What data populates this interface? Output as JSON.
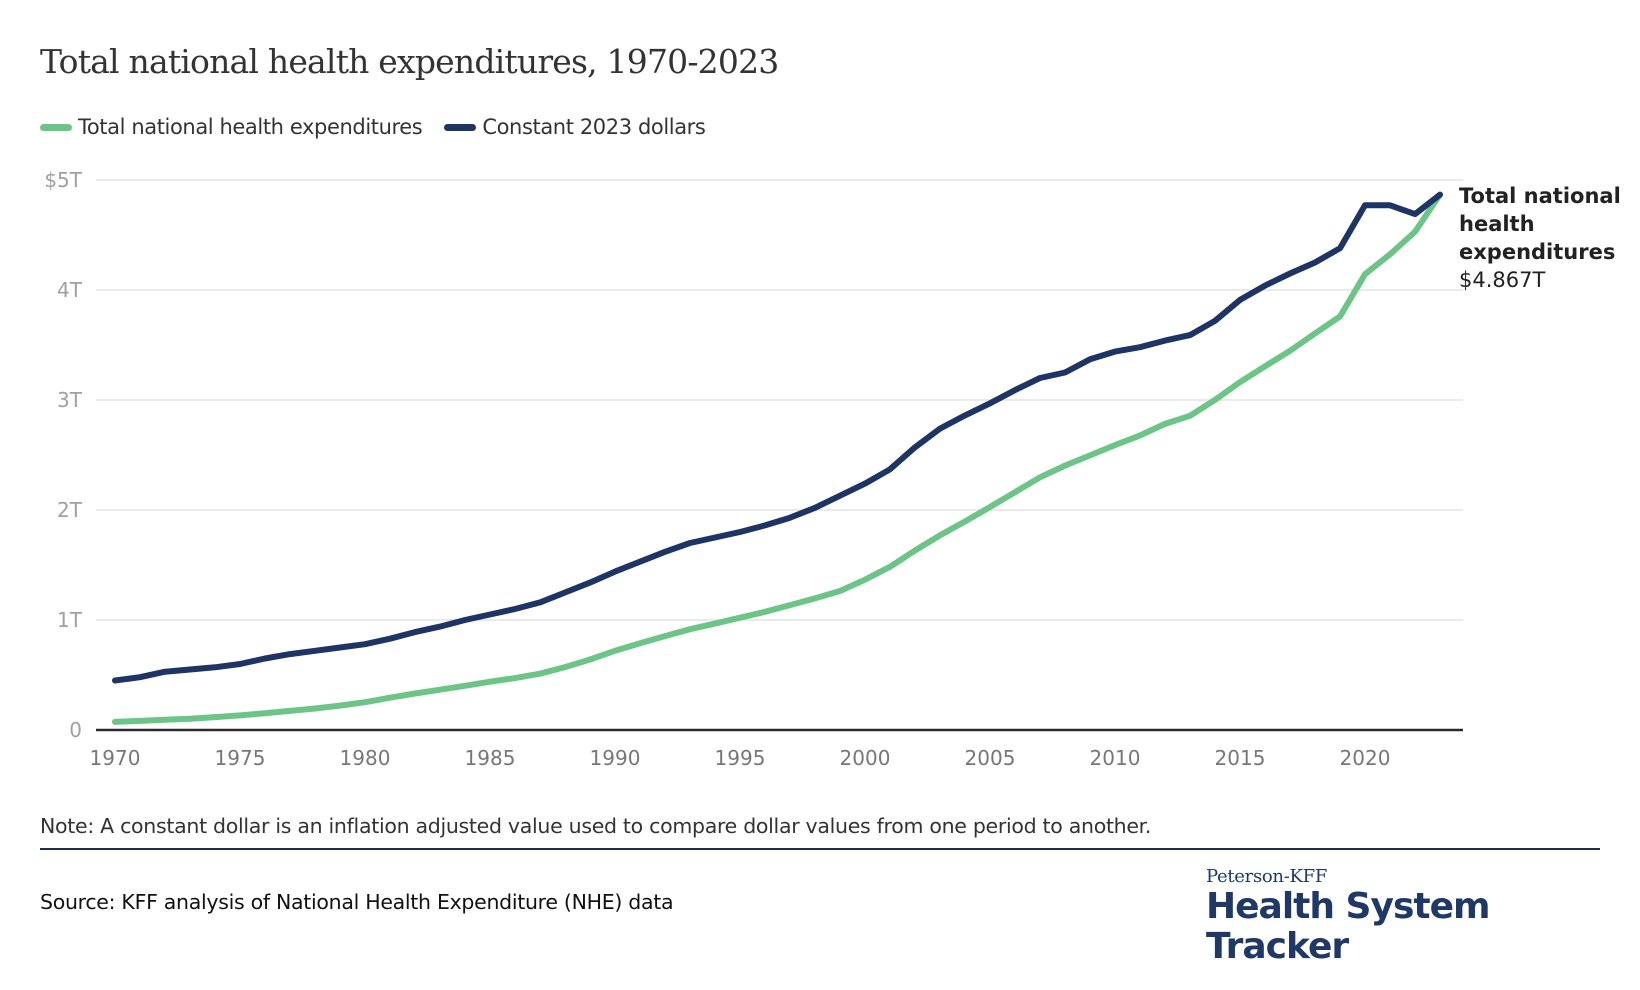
{
  "header": {
    "title": "Total national health expenditures, 1970-2023"
  },
  "legend": [
    {
      "label": "Total national health expenditures",
      "color": "#6cc487"
    },
    {
      "label": "Constant 2023 dollars",
      "color": "#1e3464"
    }
  ],
  "end_label": {
    "label": "Total national health expenditures",
    "value": "$4.867T"
  },
  "footer": {
    "note": "Note: A constant dollar is an inflation adjusted value used to compare dollar values from one period to another.",
    "source": "Source: KFF analysis of National Health Expenditure (NHE) data",
    "logo_small": "Peterson-KFF",
    "logo_big": "Health System Tracker"
  },
  "chart_data": {
    "type": "line",
    "title": "Total national health expenditures, 1970-2023",
    "xlabel": "",
    "ylabel": "",
    "x": [
      1970,
      1971,
      1972,
      1973,
      1974,
      1975,
      1976,
      1977,
      1978,
      1979,
      1980,
      1981,
      1982,
      1983,
      1984,
      1985,
      1986,
      1987,
      1988,
      1989,
      1990,
      1991,
      1992,
      1993,
      1994,
      1995,
      1996,
      1997,
      1998,
      1999,
      2000,
      2001,
      2002,
      2003,
      2004,
      2005,
      2006,
      2007,
      2008,
      2009,
      2010,
      2011,
      2012,
      2013,
      2014,
      2015,
      2016,
      2017,
      2018,
      2019,
      2020,
      2021,
      2022,
      2023
    ],
    "xlim": [
      1970,
      2023
    ],
    "ylim": [
      0,
      5
    ],
    "y_unit": "trillions of dollars",
    "x_ticks": [
      1970,
      1975,
      1980,
      1985,
      1990,
      1995,
      2000,
      2005,
      2010,
      2015,
      2020
    ],
    "x_tick_labels": [
      "1970",
      "1975",
      "1980",
      "1985",
      "1990",
      "1995",
      "2000",
      "2005",
      "2010",
      "2015",
      "2020"
    ],
    "y_ticks": [
      0,
      1,
      2,
      3,
      4,
      5
    ],
    "y_tick_labels": [
      "0",
      "1T",
      "2T",
      "3T",
      "4T",
      "$5T"
    ],
    "grid": true,
    "legend_position": "top-left",
    "series": [
      {
        "name": "Total national health expenditures",
        "color": "#6cc487",
        "values": [
          0.074,
          0.083,
          0.093,
          0.103,
          0.117,
          0.133,
          0.153,
          0.174,
          0.195,
          0.222,
          0.253,
          0.294,
          0.332,
          0.366,
          0.402,
          0.439,
          0.472,
          0.512,
          0.572,
          0.641,
          0.72,
          0.788,
          0.854,
          0.916,
          0.967,
          1.021,
          1.075,
          1.135,
          1.196,
          1.264,
          1.366,
          1.484,
          1.632,
          1.77,
          1.895,
          2.027,
          2.162,
          2.297,
          2.404,
          2.496,
          2.59,
          2.677,
          2.783,
          2.856,
          3.001,
          3.163,
          3.306,
          3.447,
          3.605,
          3.759,
          4.144,
          4.325,
          4.529,
          4.867
        ]
      },
      {
        "name": "Constant 2023 dollars",
        "color": "#1e3464",
        "values": [
          0.45,
          0.48,
          0.53,
          0.55,
          0.57,
          0.6,
          0.65,
          0.69,
          0.72,
          0.75,
          0.78,
          0.83,
          0.89,
          0.94,
          1.0,
          1.05,
          1.1,
          1.16,
          1.25,
          1.34,
          1.44,
          1.53,
          1.62,
          1.7,
          1.75,
          1.8,
          1.86,
          1.93,
          2.02,
          2.13,
          2.24,
          2.37,
          2.57,
          2.74,
          2.86,
          2.97,
          3.09,
          3.2,
          3.25,
          3.37,
          3.44,
          3.48,
          3.54,
          3.59,
          3.72,
          3.91,
          4.04,
          4.15,
          4.25,
          4.38,
          4.77,
          4.77,
          4.69,
          4.867
        ]
      }
    ],
    "annotations": [
      {
        "text": "Total national health expenditures $4.867T",
        "x": 2023,
        "y": 4.867
      }
    ]
  }
}
